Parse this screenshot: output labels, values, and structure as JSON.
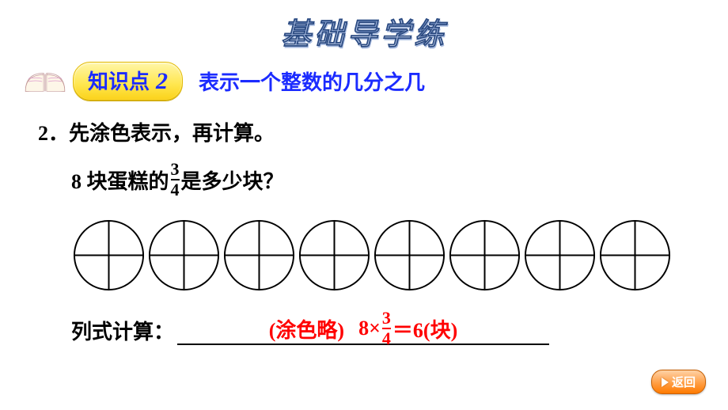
{
  "banner": {
    "text": "基础导学练",
    "font_size": 38,
    "gradient_top": "#6d8fc9",
    "gradient_bottom": "#eef2fa"
  },
  "knowledge_point": {
    "label": "知识点",
    "number": "2",
    "title": "表示一个整数的几分之几",
    "pill_colors": {
      "top": "#fff6a8",
      "mid": "#ffe64d",
      "bottom": "#fbd21a",
      "border": "#e2b900"
    },
    "text_color": "#1b2bff"
  },
  "question": {
    "number_text": "2．先涂色表示，再计算。",
    "line2_prefix": "8 块蛋糕的",
    "fraction_num": "3",
    "fraction_den": "4",
    "line2_suffix": "是多少块？",
    "circle_count": 8,
    "circle": {
      "stroke": "#000000",
      "stroke_width": 2,
      "radius": 44
    }
  },
  "answer": {
    "label": "列式计算：",
    "filled_note": "(涂色略)",
    "expr_prefix": "8×",
    "expr_frac_num": "3",
    "expr_frac_den": "4",
    "expr_suffix": "＝6(块)",
    "color": "#ff0000",
    "underline_color": "#000000"
  },
  "back_button": {
    "label": "返回",
    "bg_top": "#ffd2a6",
    "bg_bottom": "#ff7a00",
    "text_color": "#ffffff"
  }
}
